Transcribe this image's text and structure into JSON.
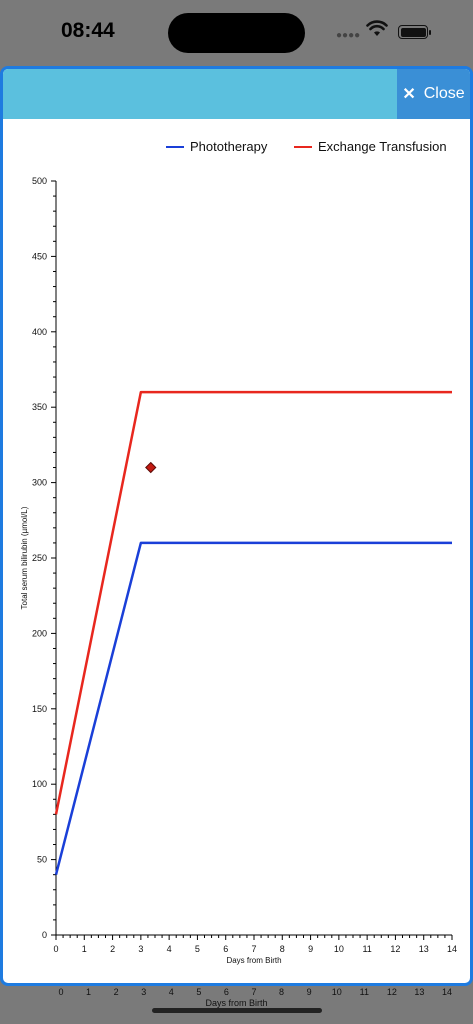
{
  "status_bar": {
    "time": "08:44",
    "signal_icon": "signal-dots-icon",
    "wifi_icon": "wifi-icon",
    "battery_icon": "battery-icon"
  },
  "header": {
    "close_label": "Close",
    "close_icon": "close-icon",
    "accent_color": "#5bc0de",
    "button_color": "#3a8fd6"
  },
  "background_axis": {
    "ticks": [
      "0",
      "1",
      "2",
      "3",
      "4",
      "5",
      "6",
      "7",
      "8",
      "9",
      "10",
      "11",
      "12",
      "13",
      "14"
    ],
    "label": "Days from Birth"
  },
  "chart_data": {
    "type": "line",
    "xlabel": "Days from Birth",
    "ylabel": "Total serum bilirubin (µmol/L)",
    "xlim": [
      0,
      14
    ],
    "ylim": [
      0,
      500
    ],
    "x_ticks": [
      0,
      1,
      2,
      3,
      4,
      5,
      6,
      7,
      8,
      9,
      10,
      11,
      12,
      13,
      14
    ],
    "y_ticks": [
      0,
      50,
      100,
      150,
      200,
      250,
      300,
      350,
      400,
      450,
      500
    ],
    "grid": false,
    "legend_position": "top-right",
    "series": [
      {
        "name": "Phototherapy",
        "color": "#1a3fd8",
        "x": [
          0,
          3,
          14
        ],
        "y": [
          40,
          260,
          260
        ]
      },
      {
        "name": "Exchange Transfusion",
        "color": "#e8271e",
        "x": [
          0,
          3,
          14
        ],
        "y": [
          80,
          360,
          360
        ]
      }
    ],
    "points": [
      {
        "x": 3.35,
        "y": 310,
        "marker": "diamond",
        "color": "#c21a12"
      }
    ]
  }
}
